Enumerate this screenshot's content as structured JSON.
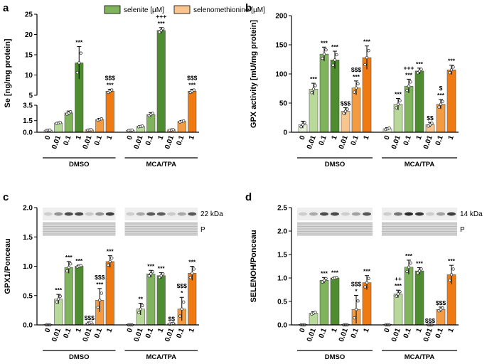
{
  "legend": {
    "series1": "selenite [µM]",
    "series2": "selenomethionine [µM]"
  },
  "colors": {
    "green": [
      "#e6f1d8",
      "#b8d99a",
      "#7fb35c",
      "#4e8c2f"
    ],
    "orange": [
      "#fde8d6",
      "#f9c58f",
      "#f29b43",
      "#ef7a12"
    ]
  },
  "chart_data": [
    {
      "id": "a",
      "type": "bar",
      "panel_letter": "a",
      "ylabel": "Se [ng/mg protein]",
      "axis_break": true,
      "ylim_lower": [
        0,
        3.5
      ],
      "ylim_upper": [
        5,
        25
      ],
      "yticks_lower": [
        "0.0",
        "1.5",
        "3.5"
      ],
      "yticks_upper": [
        "5",
        "10",
        "15",
        "20",
        "25"
      ],
      "groups": [
        "DMSO",
        "MCA/TPA"
      ],
      "categories": [
        "0",
        "0.01",
        "0.1",
        "1",
        "0.01",
        "0.1",
        "1"
      ],
      "bars": [
        {
          "group": 0,
          "series": "none",
          "shade": 0,
          "value": 0.25,
          "err": 0.05,
          "sig": []
        },
        {
          "group": 0,
          "series": "selenite",
          "shade": 1,
          "value": 1.2,
          "err": 0.1,
          "sig": []
        },
        {
          "group": 0,
          "series": "selenite",
          "shade": 2,
          "value": 2.5,
          "err": 0.25,
          "sig": []
        },
        {
          "group": 0,
          "series": "selenite",
          "shade": 3,
          "value": 13,
          "err": 4,
          "sig": [
            "***"
          ]
        },
        {
          "group": 0,
          "series": "selenomethionine",
          "shade": 1,
          "value": 0.3,
          "err": 0.05,
          "sig": []
        },
        {
          "group": 0,
          "series": "selenomethionine",
          "shade": 2,
          "value": 1.65,
          "err": 0.15,
          "sig": []
        },
        {
          "group": 0,
          "series": "selenomethionine",
          "shade": 3,
          "value": 6,
          "err": 0.5,
          "sig": [
            "***",
            "$$$"
          ]
        },
        {
          "group": 1,
          "series": "none",
          "shade": 0,
          "value": 0.25,
          "err": 0.05,
          "sig": []
        },
        {
          "group": 1,
          "series": "selenite",
          "shade": 1,
          "value": 0.75,
          "err": 0.08,
          "sig": []
        },
        {
          "group": 1,
          "series": "selenite",
          "shade": 2,
          "value": 2.3,
          "err": 0.25,
          "sig": []
        },
        {
          "group": 1,
          "series": "selenite",
          "shade": 3,
          "value": 21,
          "err": 0.7,
          "sig": [
            "***",
            "+++"
          ]
        },
        {
          "group": 1,
          "series": "selenomethionine",
          "shade": 1,
          "value": 0.3,
          "err": 0.05,
          "sig": []
        },
        {
          "group": 1,
          "series": "selenomethionine",
          "shade": 2,
          "value": 1.4,
          "err": 0.12,
          "sig": []
        },
        {
          "group": 1,
          "series": "selenomethionine",
          "shade": 3,
          "value": 6,
          "err": 0.5,
          "sig": [
            "***",
            "$$$"
          ]
        }
      ]
    },
    {
      "id": "b",
      "type": "bar",
      "panel_letter": "b",
      "ylabel": "GPX activity [mU/mg protein]",
      "ylim": [
        0,
        200
      ],
      "yticks": [
        "0",
        "50",
        "100",
        "150",
        "200"
      ],
      "groups": [
        "DMSO",
        "MCA/TPA"
      ],
      "categories": [
        "0",
        "0.01",
        "0.1",
        "1",
        "0.01",
        "0.1",
        "1"
      ],
      "bars": [
        {
          "group": 0,
          "series": "none",
          "shade": 0,
          "value": 13,
          "err": 6,
          "sig": []
        },
        {
          "group": 0,
          "series": "selenite",
          "shade": 1,
          "value": 74,
          "err": 10,
          "sig": [
            "***"
          ]
        },
        {
          "group": 0,
          "series": "selenite",
          "shade": 2,
          "value": 134,
          "err": 12,
          "sig": [
            "***"
          ]
        },
        {
          "group": 0,
          "series": "selenite",
          "shade": 3,
          "value": 124,
          "err": 15,
          "sig": [
            "***"
          ]
        },
        {
          "group": 0,
          "series": "selenomethionine",
          "shade": 1,
          "value": 36,
          "err": 6,
          "sig": [
            "$$$"
          ]
        },
        {
          "group": 0,
          "series": "selenomethionine",
          "shade": 2,
          "value": 76,
          "err": 12,
          "sig": [
            "***",
            "$$$"
          ]
        },
        {
          "group": 0,
          "series": "selenomethionine",
          "shade": 3,
          "value": 128,
          "err": 20,
          "sig": [
            "***"
          ]
        },
        {
          "group": 1,
          "series": "none",
          "shade": 0,
          "value": 6,
          "err": 2,
          "sig": []
        },
        {
          "group": 1,
          "series": "selenite",
          "shade": 1,
          "value": 48,
          "err": 10,
          "sig": [
            "***"
          ]
        },
        {
          "group": 1,
          "series": "selenite",
          "shade": 2,
          "value": 79,
          "err": 12,
          "sig": [
            "***",
            "+++"
          ]
        },
        {
          "group": 1,
          "series": "selenite",
          "shade": 3,
          "value": 105,
          "err": 5,
          "sig": [
            "***"
          ]
        },
        {
          "group": 1,
          "series": "selenomethionine",
          "shade": 1,
          "value": 13,
          "err": 4,
          "sig": [
            "$$"
          ]
        },
        {
          "group": 1,
          "series": "selenomethionine",
          "shade": 2,
          "value": 48,
          "err": 8,
          "sig": [
            "***",
            "$"
          ]
        },
        {
          "group": 1,
          "series": "selenomethionine",
          "shade": 3,
          "value": 107,
          "err": 8,
          "sig": [
            "***"
          ]
        }
      ]
    },
    {
      "id": "c",
      "type": "bar",
      "panel_letter": "c",
      "ylabel": "GPX1/Ponceau",
      "ylim": [
        0,
        2.0
      ],
      "yticks": [
        "0.0",
        "0.5",
        "1.0",
        "1.5",
        "2.0"
      ],
      "blot_label": "22 kDa",
      "ponceau_label": "P",
      "groups": [
        "DMSO",
        "MCA/TPA"
      ],
      "categories": [
        "0",
        "0.01",
        "0.1",
        "1",
        "0.01",
        "0.1",
        "1"
      ],
      "bars": [
        {
          "group": 0,
          "series": "none",
          "shade": 0,
          "value": 0.0,
          "err": 0.0,
          "sig": []
        },
        {
          "group": 0,
          "series": "selenite",
          "shade": 1,
          "value": 0.44,
          "err": 0.08,
          "sig": [
            "***"
          ]
        },
        {
          "group": 0,
          "series": "selenite",
          "shade": 2,
          "value": 0.98,
          "err": 0.1,
          "sig": [
            "***"
          ]
        },
        {
          "group": 0,
          "series": "selenite",
          "shade": 3,
          "value": 1.0,
          "err": 0.02,
          "sig": [
            "***"
          ]
        },
        {
          "group": 0,
          "series": "selenomethionine",
          "shade": 1,
          "value": 0.03,
          "err": 0.02,
          "sig": [
            "$$$"
          ]
        },
        {
          "group": 0,
          "series": "selenomethionine",
          "shade": 2,
          "value": 0.42,
          "err": 0.2,
          "sig": [
            "***",
            "$$$"
          ]
        },
        {
          "group": 0,
          "series": "selenomethionine",
          "shade": 3,
          "value": 1.08,
          "err": 0.1,
          "sig": [
            "***"
          ]
        },
        {
          "group": 1,
          "series": "none",
          "shade": 0,
          "value": 0.0,
          "err": 0.0,
          "sig": []
        },
        {
          "group": 1,
          "series": "selenite",
          "shade": 1,
          "value": 0.27,
          "err": 0.1,
          "sig": [
            "**"
          ]
        },
        {
          "group": 1,
          "series": "selenite",
          "shade": 2,
          "value": 0.87,
          "err": 0.06,
          "sig": [
            "***"
          ]
        },
        {
          "group": 1,
          "series": "selenite",
          "shade": 3,
          "value": 0.84,
          "err": 0.05,
          "sig": [
            "***"
          ]
        },
        {
          "group": 1,
          "series": "selenomethionine",
          "shade": 1,
          "value": 0.02,
          "err": 0.01,
          "sig": [
            "$$"
          ]
        },
        {
          "group": 1,
          "series": "selenomethionine",
          "shade": 2,
          "value": 0.27,
          "err": 0.2,
          "sig": [
            "*",
            "$$$"
          ]
        },
        {
          "group": 1,
          "series": "selenomethionine",
          "shade": 3,
          "value": 0.88,
          "err": 0.12,
          "sig": [
            "***"
          ]
        }
      ]
    },
    {
      "id": "d",
      "type": "bar",
      "panel_letter": "d",
      "ylabel": "SELENOH/Ponceau",
      "ylim": [
        0,
        2.5
      ],
      "yticks": [
        "0.0",
        "0.5",
        "1.0",
        "1.5",
        "2.0",
        "2.5"
      ],
      "blot_label": "14 kDa",
      "ponceau_label": "P",
      "groups": [
        "DMSO",
        "MCA/TPA"
      ],
      "categories": [
        "0",
        "0.01",
        "0.1",
        "1",
        "0.01",
        "0.1",
        "1"
      ],
      "bars": [
        {
          "group": 0,
          "series": "none",
          "shade": 0,
          "value": 0.0,
          "err": 0.0,
          "sig": []
        },
        {
          "group": 0,
          "series": "selenite",
          "shade": 1,
          "value": 0.25,
          "err": 0.03,
          "sig": []
        },
        {
          "group": 0,
          "series": "selenite",
          "shade": 2,
          "value": 0.95,
          "err": 0.06,
          "sig": [
            "***"
          ]
        },
        {
          "group": 0,
          "series": "selenite",
          "shade": 3,
          "value": 1.0,
          "err": 0.02,
          "sig": [
            "***"
          ]
        },
        {
          "group": 0,
          "series": "selenomethionine",
          "shade": 1,
          "value": 0.0,
          "err": 0.0,
          "sig": []
        },
        {
          "group": 0,
          "series": "selenomethionine",
          "shade": 2,
          "value": 0.33,
          "err": 0.3,
          "sig": [
            "*",
            "$$$"
          ]
        },
        {
          "group": 0,
          "series": "selenomethionine",
          "shade": 3,
          "value": 0.9,
          "err": 0.15,
          "sig": [
            "***"
          ]
        },
        {
          "group": 1,
          "series": "none",
          "shade": 0,
          "value": 0.0,
          "err": 0.0,
          "sig": []
        },
        {
          "group": 1,
          "series": "selenite",
          "shade": 1,
          "value": 0.66,
          "err": 0.08,
          "sig": [
            "***",
            "++"
          ]
        },
        {
          "group": 1,
          "series": "selenite",
          "shade": 2,
          "value": 1.23,
          "err": 0.15,
          "sig": [
            "***"
          ]
        },
        {
          "group": 1,
          "series": "selenite",
          "shade": 3,
          "value": 1.15,
          "err": 0.07,
          "sig": [
            "***"
          ]
        },
        {
          "group": 1,
          "series": "selenomethionine",
          "shade": 1,
          "value": 0.0,
          "err": 0.0,
          "sig": [
            "$$$"
          ]
        },
        {
          "group": 1,
          "series": "selenomethionine",
          "shade": 2,
          "value": 0.33,
          "err": 0.05,
          "sig": [
            "$$$"
          ]
        },
        {
          "group": 1,
          "series": "selenomethionine",
          "shade": 3,
          "value": 1.07,
          "err": 0.2,
          "sig": [
            "***"
          ]
        }
      ]
    }
  ]
}
